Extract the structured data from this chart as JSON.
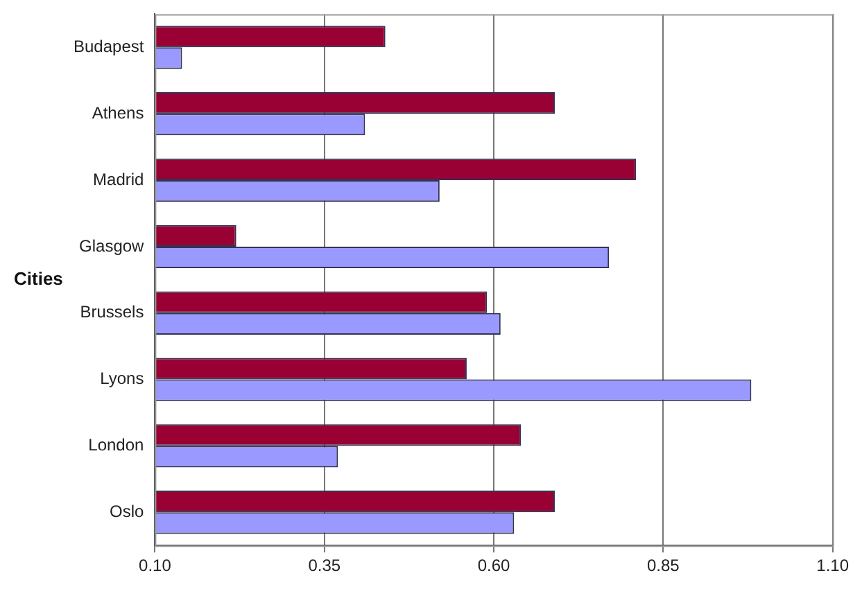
{
  "chart_data": {
    "type": "bar",
    "orientation": "horizontal",
    "ylabel": "Cities",
    "categories": [
      "Budapest",
      "Athens",
      "Madrid",
      "Glasgow",
      "Brussels",
      "Lyons",
      "London",
      "Oslo"
    ],
    "series": [
      {
        "color": "#990033",
        "values": [
          0.44,
          0.69,
          0.81,
          0.22,
          0.59,
          0.56,
          0.64,
          0.69
        ]
      },
      {
        "color": "#9999ff",
        "values": [
          0.14,
          0.41,
          0.52,
          0.77,
          0.61,
          0.98,
          0.37,
          0.63
        ]
      }
    ],
    "xlim": [
      0.1,
      1.1
    ],
    "xticks": [
      {
        "value": 0.1,
        "label": "0.10"
      },
      {
        "value": 0.35,
        "label": "0.35"
      },
      {
        "value": 0.6,
        "label": "0.60"
      },
      {
        "value": 0.85,
        "label": "0.85"
      },
      {
        "value": 1.1,
        "label": "1.10"
      }
    ],
    "grid": "x",
    "legend": false
  }
}
